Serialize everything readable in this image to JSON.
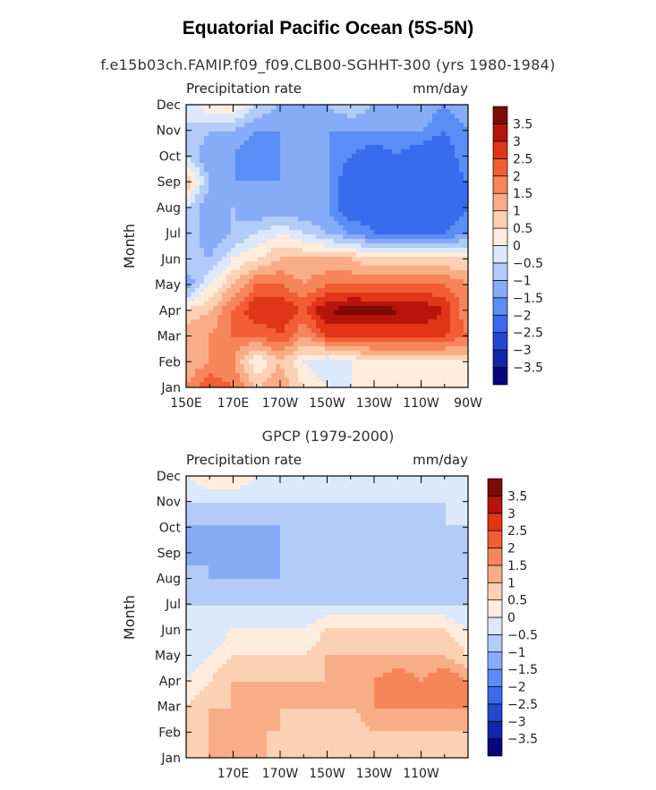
{
  "title": "Equatorial Pacific Ocean (5S-5N)",
  "subtitle": "f.e15b03ch.FAMIP.f09_f09.CLB00-SGHHT-300 (yrs 1980-1984)",
  "colors": {
    "levels": [
      "#08067a",
      "#1226a8",
      "#2148cf",
      "#3a6bee",
      "#5a8df5",
      "#86acf8",
      "#b2cbf9",
      "#dce8fb",
      "#ffecdc",
      "#fcd0b3",
      "#f9ad86",
      "#f6865a",
      "#f25d33",
      "#e23416",
      "#b7150b",
      "#7c0a06"
    ]
  },
  "chart_data": [
    {
      "type": "heatmap",
      "title": "",
      "left_label": "Precipitation rate",
      "right_label": "mm/day",
      "xlabel": "",
      "ylabel": "Month",
      "x_ticks": [
        "150E",
        "170E",
        "170W",
        "150W",
        "130W",
        "110W",
        "90W"
      ],
      "x_range": [
        "150E",
        "90W"
      ],
      "y_ticks": [
        "Jan",
        "Feb",
        "Mar",
        "Apr",
        "May",
        "Jun",
        "Jul",
        "Aug",
        "Sep",
        "Oct",
        "Nov",
        "Dec"
      ],
      "colorbar_labels": [
        "3.5",
        "3",
        "2.5",
        "2",
        "1.5",
        "1",
        "0.5",
        "0",
        "-0.5",
        "-1",
        "-1.5",
        "-2",
        "-2.5",
        "-3",
        "-3.5"
      ],
      "z_range": [
        -4,
        4
      ],
      "lon": [
        150,
        160,
        170,
        180,
        190,
        200,
        210,
        220,
        230,
        240,
        250,
        260,
        270
      ],
      "z": [
        [
          1.5,
          2.5,
          2.0,
          1.0,
          1.5,
          0.5,
          0.0,
          0.0,
          0.2,
          0.2,
          0.0,
          0.0,
          0.0
        ],
        [
          1.0,
          1.5,
          1.5,
          0.0,
          1.0,
          0.0,
          -0.5,
          0.0,
          0.5,
          0.5,
          0.5,
          0.5,
          0.5
        ],
        [
          1.5,
          1.5,
          2.0,
          2.0,
          2.5,
          1.5,
          2.5,
          2.5,
          2.5,
          2.5,
          2.5,
          2.5,
          2.0
        ],
        [
          0.5,
          1.0,
          2.0,
          3.0,
          3.0,
          2.5,
          3.5,
          3.8,
          3.7,
          3.6,
          3.5,
          3.0,
          1.5
        ],
        [
          -1.5,
          0.0,
          1.0,
          2.0,
          2.0,
          1.5,
          2.0,
          2.0,
          2.0,
          2.0,
          2.0,
          2.0,
          1.5
        ],
        [
          -0.5,
          -1.0,
          0.0,
          0.5,
          1.0,
          1.0,
          1.0,
          1.0,
          0.5,
          0.5,
          0.5,
          0.5,
          0.5
        ],
        [
          -0.5,
          -1.5,
          -1.0,
          -0.5,
          0.0,
          -0.5,
          -1.0,
          -1.5,
          -2.0,
          -2.0,
          -2.0,
          -2.0,
          -1.5
        ],
        [
          -0.5,
          -1.5,
          -1.0,
          -1.5,
          -1.5,
          -1.5,
          -1.5,
          -2.5,
          -2.5,
          -2.5,
          -2.5,
          -2.5,
          -2.0
        ],
        [
          1.0,
          -1.0,
          -1.5,
          -1.5,
          -1.5,
          -1.5,
          -1.5,
          -2.5,
          -2.5,
          -2.5,
          -2.5,
          -2.5,
          -2.0
        ],
        [
          -0.5,
          -1.5,
          -1.5,
          -2.0,
          -1.5,
          -1.5,
          -1.5,
          -2.0,
          -2.5,
          -2.0,
          -2.5,
          -2.5,
          -1.5
        ],
        [
          -0.5,
          -1.0,
          -1.0,
          -1.5,
          -1.5,
          -1.5,
          -1.5,
          -1.5,
          -1.5,
          -1.5,
          -1.5,
          -2.0,
          -1.5
        ],
        [
          -0.5,
          0.5,
          0.5,
          -0.5,
          -1.0,
          -1.5,
          -1.0,
          -0.5,
          -1.0,
          -1.0,
          -1.0,
          -1.5,
          -1.0
        ]
      ]
    },
    {
      "type": "heatmap",
      "title": "GPCP (1979-2000)",
      "left_label": "Precipitation rate",
      "right_label": "mm/day",
      "xlabel": "",
      "ylabel": "Month",
      "x_ticks": [
        "170E",
        "170W",
        "150W",
        "130W",
        "110W"
      ],
      "y_ticks": [
        "Jan",
        "Feb",
        "Mar",
        "Apr",
        "May",
        "Jun",
        "Jul",
        "Aug",
        "Sep",
        "Oct",
        "Nov",
        "Dec"
      ],
      "colorbar_labels": [
        "3.5",
        "3",
        "2.5",
        "2",
        "1.5",
        "1",
        "0.5",
        "0",
        "-0.5",
        "-1",
        "-1.5",
        "-2",
        "-2.5",
        "-3",
        "-3.5"
      ],
      "z_range": [
        -4,
        4
      ],
      "lon": [
        150,
        160,
        170,
        180,
        190,
        200,
        210,
        220,
        230,
        240,
        250,
        260,
        270
      ],
      "z": [
        [
          0.5,
          1.0,
          1.0,
          1.5,
          0.5,
          0.5,
          0.5,
          0.5,
          0.5,
          0.5,
          0.5,
          0.5,
          0.5
        ],
        [
          0.5,
          1.0,
          1.5,
          1.0,
          1.0,
          0.5,
          0.5,
          0.5,
          1.0,
          1.0,
          1.0,
          1.0,
          1.0
        ],
        [
          0.5,
          1.0,
          1.0,
          1.0,
          1.0,
          1.0,
          1.0,
          1.0,
          1.5,
          1.5,
          1.5,
          1.5,
          1.5
        ],
        [
          0.0,
          0.5,
          1.0,
          1.0,
          1.0,
          1.0,
          1.0,
          1.5,
          1.5,
          2.0,
          1.5,
          2.0,
          1.5
        ],
        [
          -0.5,
          0.0,
          0.5,
          0.5,
          0.5,
          0.5,
          1.0,
          1.0,
          1.0,
          1.0,
          1.0,
          1.0,
          0.5
        ],
        [
          -0.5,
          -0.5,
          0.0,
          0.0,
          0.0,
          0.0,
          0.5,
          0.5,
          0.5,
          0.5,
          0.5,
          0.5,
          0.0
        ],
        [
          -0.5,
          -0.5,
          -0.5,
          -0.5,
          -0.5,
          -0.5,
          -0.5,
          -0.5,
          -0.5,
          -0.5,
          -0.5,
          -0.5,
          -0.5
        ],
        [
          -0.5,
          -1.0,
          -1.0,
          -1.0,
          -1.0,
          -1.0,
          -1.0,
          -1.0,
          -1.0,
          -1.0,
          -1.0,
          -0.5,
          -1.0
        ],
        [
          -1.5,
          -1.0,
          -1.5,
          -1.5,
          -1.0,
          -1.0,
          -1.0,
          -1.0,
          -1.0,
          -1.0,
          -1.0,
          -0.5,
          -1.0
        ],
        [
          -1.0,
          -1.0,
          -1.0,
          -1.0,
          -1.0,
          -1.0,
          -1.0,
          -0.5,
          -1.0,
          -1.0,
          -1.0,
          -0.5,
          -0.5
        ],
        [
          -0.5,
          -0.5,
          -0.5,
          -0.5,
          -0.5,
          -0.5,
          -0.5,
          -0.5,
          -0.5,
          -0.5,
          -0.5,
          -0.5,
          -0.5
        ],
        [
          0.0,
          0.5,
          0.5,
          0.0,
          0.0,
          0.0,
          0.0,
          0.0,
          0.0,
          0.0,
          0.0,
          0.0,
          0.0
        ]
      ]
    }
  ]
}
